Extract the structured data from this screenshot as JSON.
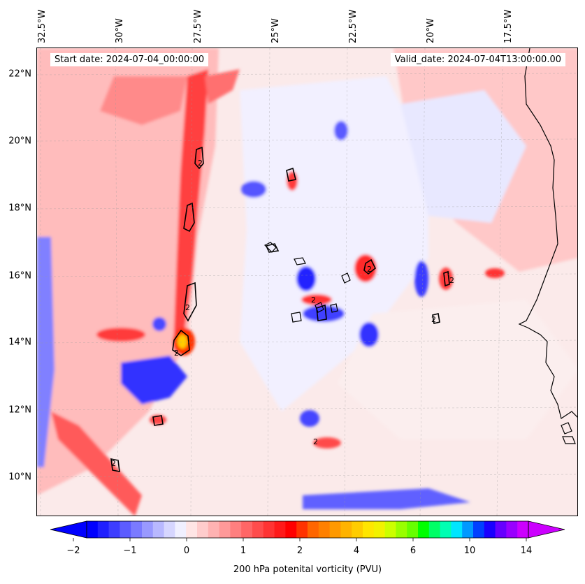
{
  "header": {
    "start_date": "Start date: 2024-07-04_00:00:00",
    "valid_date": "Valid_date: 2024-07-04T13:00:00.00"
  },
  "map": {
    "lon_labels": [
      "32.5°W",
      "30°W",
      "27.5°W",
      "25°W",
      "22.5°W",
      "20°W",
      "17.5°W"
    ],
    "lat_labels": [
      "22°N",
      "20°N",
      "18°N",
      "16°N",
      "14°N",
      "12°N",
      "10°N"
    ],
    "contour_label": "2",
    "colors": {
      "negative_strong": "#0000ff",
      "negative_weak": "#b3b3ff",
      "neutral": "#ffffff",
      "positive_weak": "#ffc4c4",
      "positive_strong": "#ff2020",
      "peak": "#ffcc00",
      "coastline": "#000000"
    }
  },
  "colorbar": {
    "tick_labels": [
      "−2",
      "−1",
      "0",
      "1",
      "2",
      "4",
      "6",
      "10",
      "14"
    ],
    "title": "200 hPa potenital vorticity (PVU)",
    "colors": [
      "#0000ff",
      "#1f1fff",
      "#3d3dff",
      "#5c5cff",
      "#7a7aff",
      "#9999ff",
      "#b8b8ff",
      "#d6d6ff",
      "#f0f0ff",
      "#ffe5e5",
      "#ffcccc",
      "#ffb2b2",
      "#ff9999",
      "#ff7f7f",
      "#ff6666",
      "#ff4c4c",
      "#ff3333",
      "#ff1a1a",
      "#ff0000",
      "#ff3300",
      "#ff6600",
      "#ff8000",
      "#ff9900",
      "#ffb300",
      "#ffcc00",
      "#ffe600",
      "#f2f200",
      "#ccff00",
      "#99ff00",
      "#66ff00",
      "#00ff00",
      "#00ff66",
      "#00ffb3",
      "#00e5ff",
      "#0099ff",
      "#0040ff",
      "#1a00ff",
      "#6600ff",
      "#9900ff",
      "#cc00ff"
    ],
    "extend_min_color": "#0000ff",
    "extend_max_color": "#cc00ff"
  }
}
